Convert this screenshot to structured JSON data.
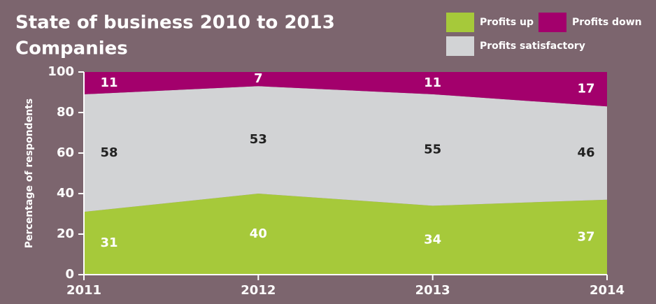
{
  "chart_data": {
    "type": "stacked_area",
    "title": "State of business 2010 to 2013",
    "subtitle": "Companies",
    "y_label": "Percentage of respondents",
    "x": [
      2011,
      2012,
      2013,
      2014
    ],
    "xlim": [
      2011,
      2014
    ],
    "xticks": [
      2011,
      2012,
      2013,
      2014
    ],
    "ylim": [
      0,
      100
    ],
    "yticks": [
      0,
      20,
      40,
      60,
      80,
      100
    ],
    "legend": "top-right",
    "background": "#7c656e",
    "series": [
      {
        "name": "Profits up",
        "color": "#a6c93a",
        "values": [
          31,
          40,
          34,
          37
        ]
      },
      {
        "name": "Profits satisfactory",
        "color": "#d2d3d5",
        "values": [
          58,
          53,
          55,
          46
        ]
      },
      {
        "name": "Profits down",
        "color": "#a3006c",
        "values": [
          11,
          7,
          11,
          17
        ]
      }
    ]
  }
}
